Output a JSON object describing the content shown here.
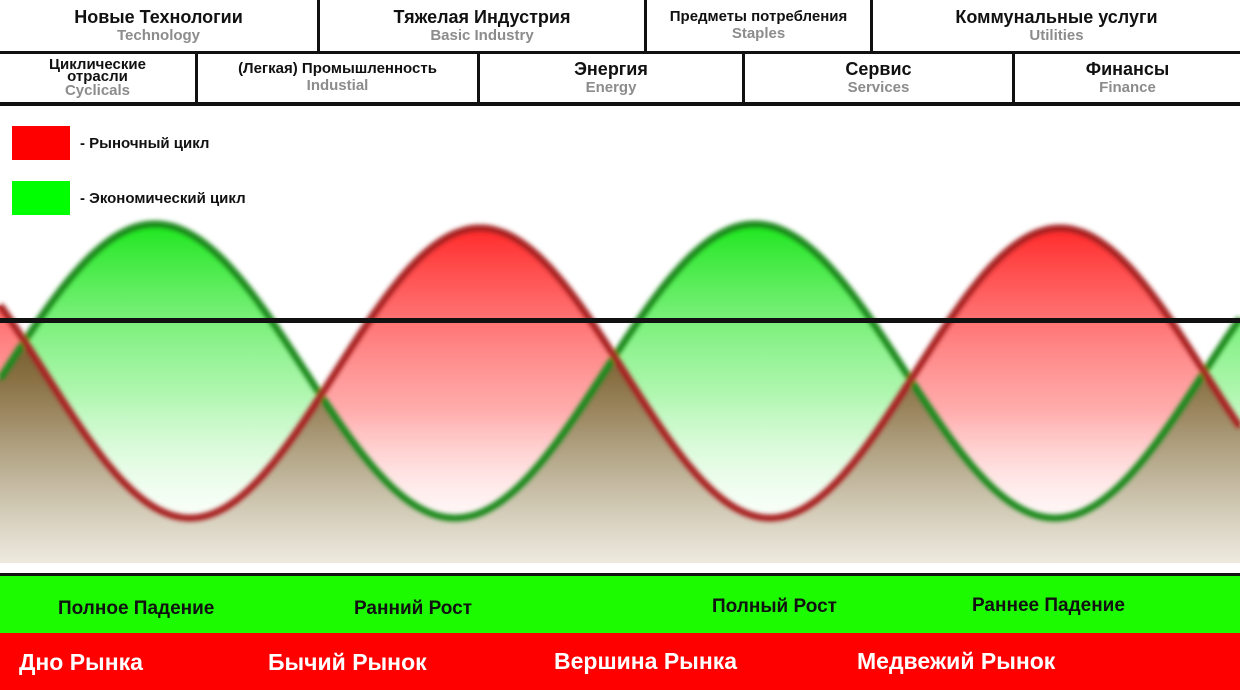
{
  "sectors_top": [
    {
      "ru": "Новые Технологии",
      "en": "Technology"
    },
    {
      "ru": "Тяжелая Индустрия",
      "en": "Basic Industry"
    },
    {
      "ru": "Предметы потребления",
      "en": "Staples"
    },
    {
      "ru": "Коммунальные услуги",
      "en": "Utilities"
    }
  ],
  "sectors_bottom": [
    {
      "ru": "Циклические отрасли",
      "en": "Cyclicals"
    },
    {
      "ru": "(Легкая) Промышленность",
      "en": "Industial"
    },
    {
      "ru": "Энергия",
      "en": "Energy"
    },
    {
      "ru": "Сервис",
      "en": "Services"
    },
    {
      "ru": "Финансы",
      "en": "Finance"
    }
  ],
  "legend": {
    "market": {
      "label": "- Рыночный цикл",
      "color": "#ff2020"
    },
    "economic": {
      "label": "- Экономический цикл",
      "color": "#22ee22"
    }
  },
  "phases": [
    "Полное Падение",
    "Ранний Рост",
    "Полный Рост",
    "Раннее Падение"
  ],
  "markets": [
    "Дно Рынка",
    "Бычий Рынок",
    "Вершина Рынка",
    "Медвежий Рынок"
  ],
  "colors": {
    "phase_bar": "#1dfb00",
    "market_bar": "#ff0000",
    "overlap": "#3a2a00"
  }
}
